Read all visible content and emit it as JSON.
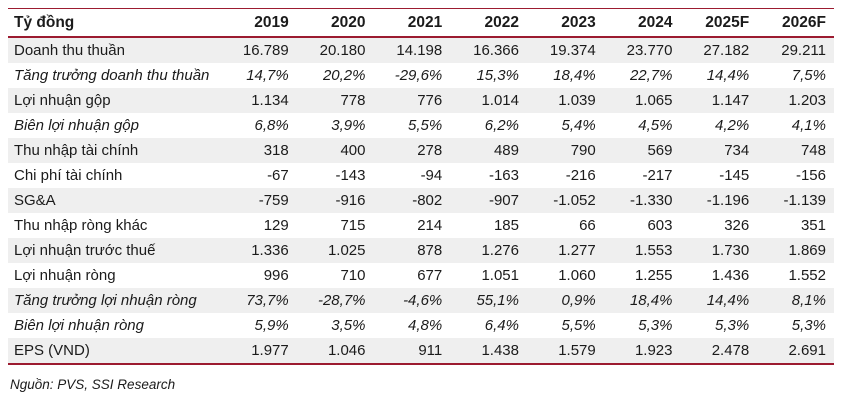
{
  "colors": {
    "rule_red": "#9c1b30",
    "stripe_gray": "#efefef",
    "text": "#1b1b1b"
  },
  "chart_data": {
    "type": "table",
    "title": "Tỷ đồng",
    "columns": [
      "2019",
      "2020",
      "2021",
      "2022",
      "2023",
      "2024",
      "2025F",
      "2026F"
    ],
    "rows": [
      {
        "label": "Doanh thu thuần",
        "italic": false,
        "values": [
          "16.789",
          "20.180",
          "14.198",
          "16.366",
          "19.374",
          "23.770",
          "27.182",
          "29.211"
        ]
      },
      {
        "label": "Tăng trưởng doanh thu thuần",
        "italic": true,
        "values": [
          "14,7%",
          "20,2%",
          "-29,6%",
          "15,3%",
          "18,4%",
          "22,7%",
          "14,4%",
          "7,5%"
        ]
      },
      {
        "label": "Lợi nhuận gộp",
        "italic": false,
        "values": [
          "1.134",
          "778",
          "776",
          "1.014",
          "1.039",
          "1.065",
          "1.147",
          "1.203"
        ]
      },
      {
        "label": "Biên lợi nhuận gộp",
        "italic": true,
        "values": [
          "6,8%",
          "3,9%",
          "5,5%",
          "6,2%",
          "5,4%",
          "4,5%",
          "4,2%",
          "4,1%"
        ]
      },
      {
        "label": "Thu nhập tài chính",
        "italic": false,
        "values": [
          "318",
          "400",
          "278",
          "489",
          "790",
          "569",
          "734",
          "748"
        ]
      },
      {
        "label": "Chi phí tài chính",
        "italic": false,
        "values": [
          "-67",
          "-143",
          "-94",
          "-163",
          "-216",
          "-217",
          "-145",
          "-156"
        ]
      },
      {
        "label": "SG&A",
        "italic": false,
        "values": [
          "-759",
          "-916",
          "-802",
          "-907",
          "-1.052",
          "-1.330",
          "-1.196",
          "-1.139"
        ]
      },
      {
        "label": "Thu nhập ròng khác",
        "italic": false,
        "values": [
          "129",
          "715",
          "214",
          "185",
          "66",
          "603",
          "326",
          "351"
        ]
      },
      {
        "label": "Lợi nhuận trước thuế",
        "italic": false,
        "values": [
          "1.336",
          "1.025",
          "878",
          "1.276",
          "1.277",
          "1.553",
          "1.730",
          "1.869"
        ]
      },
      {
        "label": "Lợi nhuận ròng",
        "italic": false,
        "values": [
          "996",
          "710",
          "677",
          "1.051",
          "1.060",
          "1.255",
          "1.436",
          "1.552"
        ]
      },
      {
        "label": "Tăng trưởng lợi nhuận ròng",
        "italic": true,
        "values": [
          "73,7%",
          "-28,7%",
          "-4,6%",
          "55,1%",
          "0,9%",
          "18,4%",
          "14,4%",
          "8,1%"
        ]
      },
      {
        "label": "Biên lợi nhuận ròng",
        "italic": true,
        "values": [
          "5,9%",
          "3,5%",
          "4,8%",
          "6,4%",
          "5,5%",
          "5,3%",
          "5,3%",
          "5,3%"
        ]
      },
      {
        "label": "EPS (VND)",
        "italic": false,
        "values": [
          "1.977",
          "1.046",
          "911",
          "1.438",
          "1.579",
          "1.923",
          "2.478",
          "2.691"
        ]
      }
    ],
    "source_note": "Nguồn: PVS, SSI Research"
  }
}
